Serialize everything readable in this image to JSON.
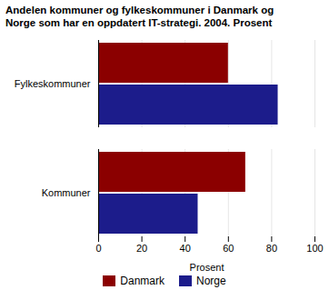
{
  "chart_data": {
    "type": "bar",
    "orientation": "horizontal",
    "title": "Andelen kommuner og fylkeskommuner i Danmark og\nNorge som har en oppdatert IT-strategi. 2004. Prosent",
    "categories": [
      "Fylkeskommuner",
      "Kommuner"
    ],
    "series": [
      {
        "name": "Danmark",
        "color": "#8B0000",
        "values": [
          60,
          68
        ]
      },
      {
        "name": "Norge",
        "color": "#1C1C8B",
        "values": [
          83,
          46
        ]
      }
    ],
    "xlabel": "Prosent",
    "xlim": [
      0,
      100
    ],
    "xticks": [
      0,
      20,
      40,
      60,
      80,
      100
    ],
    "grid": true,
    "legend": "bottom"
  }
}
